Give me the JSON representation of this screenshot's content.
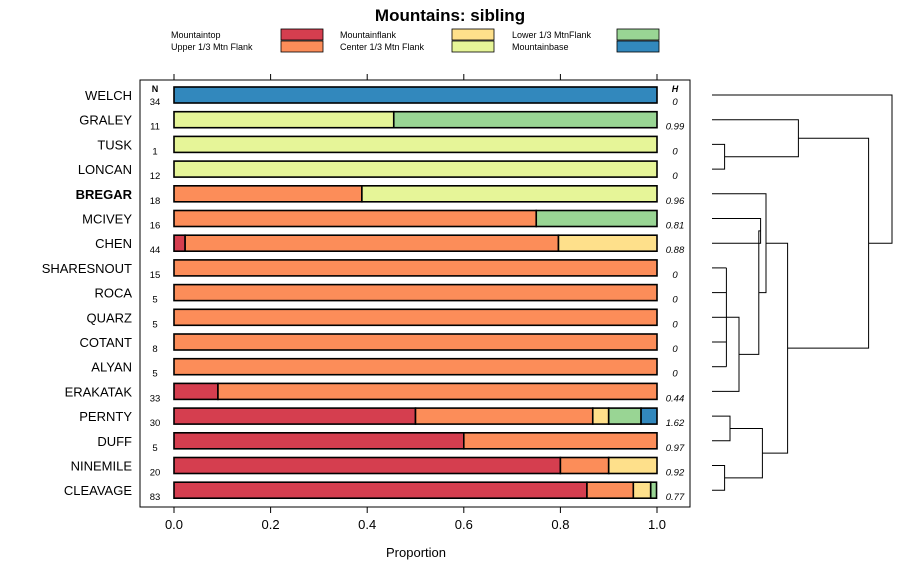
{
  "chart_data": {
    "type": "bar",
    "orientation": "horizontal",
    "stacked": true,
    "title": "Mountains: sibling",
    "xlabel": "Proportion",
    "ylabel": "",
    "xlim": [
      0,
      1
    ],
    "x_ticks": [
      "0.0",
      "0.2",
      "0.4",
      "0.6",
      "0.8",
      "1.0"
    ],
    "n_header": "N",
    "h_header": "H",
    "legend": [
      {
        "name": "Mountaintop",
        "color": "#d53e4f"
      },
      {
        "name": "Mountainflank",
        "color": "#fc8d59"
      },
      {
        "name": "Upper 1/3 Mtn Flank",
        "color": "#fc8d59"
      },
      {
        "name": "Center 1/3 Mtn Flank",
        "color": "#fee08b"
      },
      {
        "name": "Lower 1/3 MtnFlank",
        "color": "#e6f598"
      },
      {
        "name": "Mountainbase",
        "color": "#99d594"
      },
      {
        "name": "",
        "color": "#3288bd"
      }
    ],
    "series_colors": [
      "#d53e4f",
      "#fc8d59",
      "#fee08b",
      "#e6f598",
      "#99d594",
      "#3288bd"
    ],
    "rows": [
      {
        "name": "WELCH",
        "bold": false,
        "n": "34",
        "h": "0",
        "values": [
          0,
          0,
          0,
          0,
          0,
          1.0
        ]
      },
      {
        "name": "GRALEY",
        "bold": false,
        "n": "11",
        "h": "0.99",
        "values": [
          0,
          0,
          0,
          0.455,
          0.545,
          0
        ]
      },
      {
        "name": "TUSK",
        "bold": false,
        "n": "1",
        "h": "0",
        "values": [
          0,
          0,
          0,
          1.0,
          0,
          0
        ]
      },
      {
        "name": "LONCAN",
        "bold": false,
        "n": "12",
        "h": "0",
        "values": [
          0,
          0,
          0,
          1.0,
          0,
          0
        ]
      },
      {
        "name": "BREGAR",
        "bold": true,
        "n": "18",
        "h": "0.96",
        "values": [
          0,
          0.389,
          0,
          0.611,
          0,
          0
        ]
      },
      {
        "name": "MCIVEY",
        "bold": false,
        "n": "16",
        "h": "0.81",
        "values": [
          0,
          0.75,
          0,
          0,
          0.25,
          0
        ]
      },
      {
        "name": "CHEN",
        "bold": false,
        "n": "44",
        "h": "0.88",
        "values": [
          0.023,
          0.773,
          0.204,
          0,
          0,
          0
        ]
      },
      {
        "name": "SHARESNOUT",
        "bold": false,
        "n": "15",
        "h": "0",
        "values": [
          0,
          1.0,
          0,
          0,
          0,
          0
        ]
      },
      {
        "name": "ROCA",
        "bold": false,
        "n": "5",
        "h": "0",
        "values": [
          0,
          1.0,
          0,
          0,
          0,
          0
        ]
      },
      {
        "name": "QUARZ",
        "bold": false,
        "n": "5",
        "h": "0",
        "values": [
          0,
          1.0,
          0,
          0,
          0,
          0
        ]
      },
      {
        "name": "COTANT",
        "bold": false,
        "n": "8",
        "h": "0",
        "values": [
          0,
          1.0,
          0,
          0,
          0,
          0
        ]
      },
      {
        "name": "ALYAN",
        "bold": false,
        "n": "5",
        "h": "0",
        "values": [
          0,
          1.0,
          0,
          0,
          0,
          0
        ]
      },
      {
        "name": "ERAKATAK",
        "bold": false,
        "n": "33",
        "h": "0.44",
        "values": [
          0.091,
          0.909,
          0,
          0,
          0,
          0
        ]
      },
      {
        "name": "PERNTY",
        "bold": false,
        "n": "30",
        "h": "1.62",
        "values": [
          0.5,
          0.367,
          0.033,
          0,
          0.067,
          0.033
        ]
      },
      {
        "name": "DUFF",
        "bold": false,
        "n": "5",
        "h": "0.97",
        "values": [
          0.6,
          0.4,
          0,
          0,
          0,
          0
        ]
      },
      {
        "name": "NINEMILE",
        "bold": false,
        "n": "20",
        "h": "0.92",
        "values": [
          0.8,
          0.1,
          0.1,
          0,
          0,
          0
        ]
      },
      {
        "name": "CLEAVAGE",
        "bold": false,
        "n": "83",
        "h": "0.77",
        "values": [
          0.855,
          0.096,
          0.036,
          0,
          0.012,
          0
        ]
      }
    ],
    "dendrogram": {
      "leaf_order": [
        "WELCH",
        "GRALEY",
        "TUSK",
        "LONCAN",
        "BREGAR",
        "MCIVEY",
        "CHEN",
        "SHARESNOUT",
        "ROCA",
        "QUARZ",
        "COTANT",
        "ALYAN",
        "ERAKATAK",
        "PERNTY",
        "DUFF",
        "NINEMILE",
        "CLEAVAGE"
      ],
      "merge_heights": {
        "welch_rest": 1.0,
        "graley_tl": 0.48,
        "tusk_loncan": 0.07,
        "gtl_b": 0.3,
        "top": 0.87,
        "mcivey_chen": 0.27,
        "five_zero": 0.08,
        "zero_erak": 0.15,
        "upper_lower": 0.42,
        "mc_zero": 0.26,
        "pernty_duff": 0.1,
        "nine_cleave": 0.07,
        "pd_nc": 0.28
      }
    }
  }
}
